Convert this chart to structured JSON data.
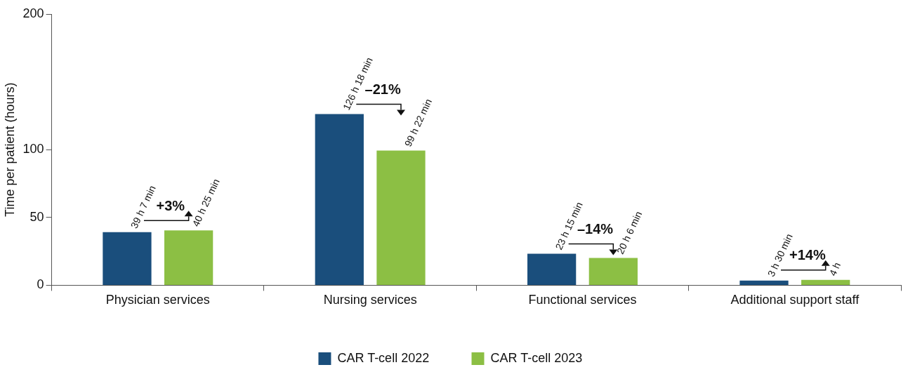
{
  "chart_data": {
    "type": "bar",
    "ylabel": "Time per patient (hours)",
    "categories": [
      "Physician services",
      "Nursing services",
      "Functional services",
      "Additional support staff"
    ],
    "series": [
      {
        "name": "CAR T-cell 2022",
        "color": "#1a4e7c",
        "values": [
          39.12,
          126.3,
          23.25,
          3.5
        ],
        "value_labels": [
          "39 h 7 min",
          "126 h 18 min",
          "23 h 15 min",
          "3 h 30 min"
        ]
      },
      {
        "name": "CAR T-cell 2023",
        "color": "#8cbf44",
        "values": [
          40.42,
          99.37,
          20.1,
          4
        ],
        "value_labels": [
          "40 h 25 min",
          "99 h 22 min",
          "20 h 6 min",
          "4 h"
        ]
      }
    ],
    "ylim": [
      0,
      200
    ],
    "yticks": [
      0,
      50,
      100,
      200
    ],
    "grid": false,
    "legend": "bottom",
    "annotations": [
      "+3%",
      "–21%",
      "–14%",
      "+14%"
    ]
  }
}
